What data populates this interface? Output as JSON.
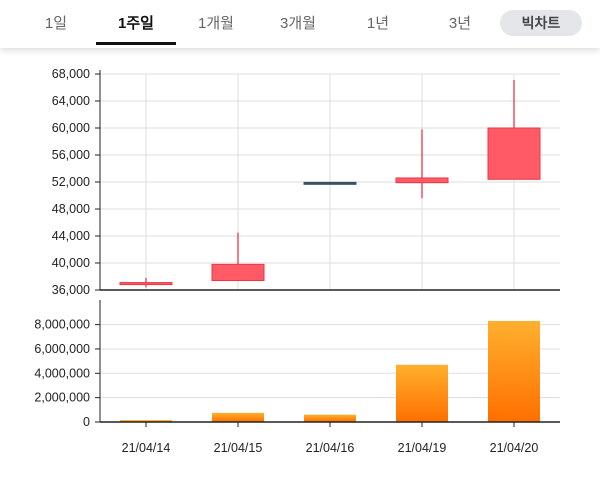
{
  "tabs": [
    {
      "label": "1일",
      "active": false
    },
    {
      "label": "1주일",
      "active": true
    },
    {
      "label": "1개월",
      "active": false
    },
    {
      "label": "3개월",
      "active": false
    },
    {
      "label": "1년",
      "active": false
    },
    {
      "label": "3년",
      "active": false
    }
  ],
  "big_chart_label": "빅차트",
  "colors": {
    "up": "#ff5a66",
    "up_stroke": "#e63946",
    "flat": "#3d5361",
    "volume_top": "#ffb02e",
    "volume_bottom": "#ff6f00",
    "grid": "#dddddd",
    "axis": "#222222"
  },
  "chart_data": [
    {
      "type": "candlestick",
      "categories": [
        "21/04/14",
        "21/04/15",
        "21/04/16",
        "21/04/19",
        "21/04/20"
      ],
      "series": [
        {
          "open": 36800,
          "high": 37800,
          "low": 36400,
          "close": 37100
        },
        {
          "open": 37400,
          "high": 44500,
          "low": 37400,
          "close": 39800
        },
        {
          "open": 51800,
          "high": 51800,
          "low": 51800,
          "close": 51800
        },
        {
          "open": 51900,
          "high": 59800,
          "low": 49600,
          "close": 52600
        },
        {
          "open": 52400,
          "high": 67100,
          "low": 52400,
          "close": 60000
        }
      ],
      "ylim": [
        36000,
        68000
      ],
      "yticks": [
        36000,
        40000,
        44000,
        48000,
        52000,
        56000,
        60000,
        64000,
        68000
      ],
      "ytick_labels": [
        "36,000",
        "40,000",
        "44,000",
        "48,000",
        "52,000",
        "56,000",
        "60,000",
        "64,000",
        "68,000"
      ],
      "grid": true
    },
    {
      "type": "bar",
      "categories": [
        "21/04/14",
        "21/04/15",
        "21/04/16",
        "21/04/19",
        "21/04/20"
      ],
      "values": [
        150000,
        750000,
        600000,
        4700000,
        8300000
      ],
      "ylim": [
        0,
        9200000
      ],
      "yticks": [
        0,
        2000000,
        4000000,
        6000000,
        8000000
      ],
      "ytick_labels": [
        "0",
        "2,000,000",
        "4,000,000",
        "6,000,000",
        "8,000,000"
      ],
      "grid": true
    }
  ]
}
